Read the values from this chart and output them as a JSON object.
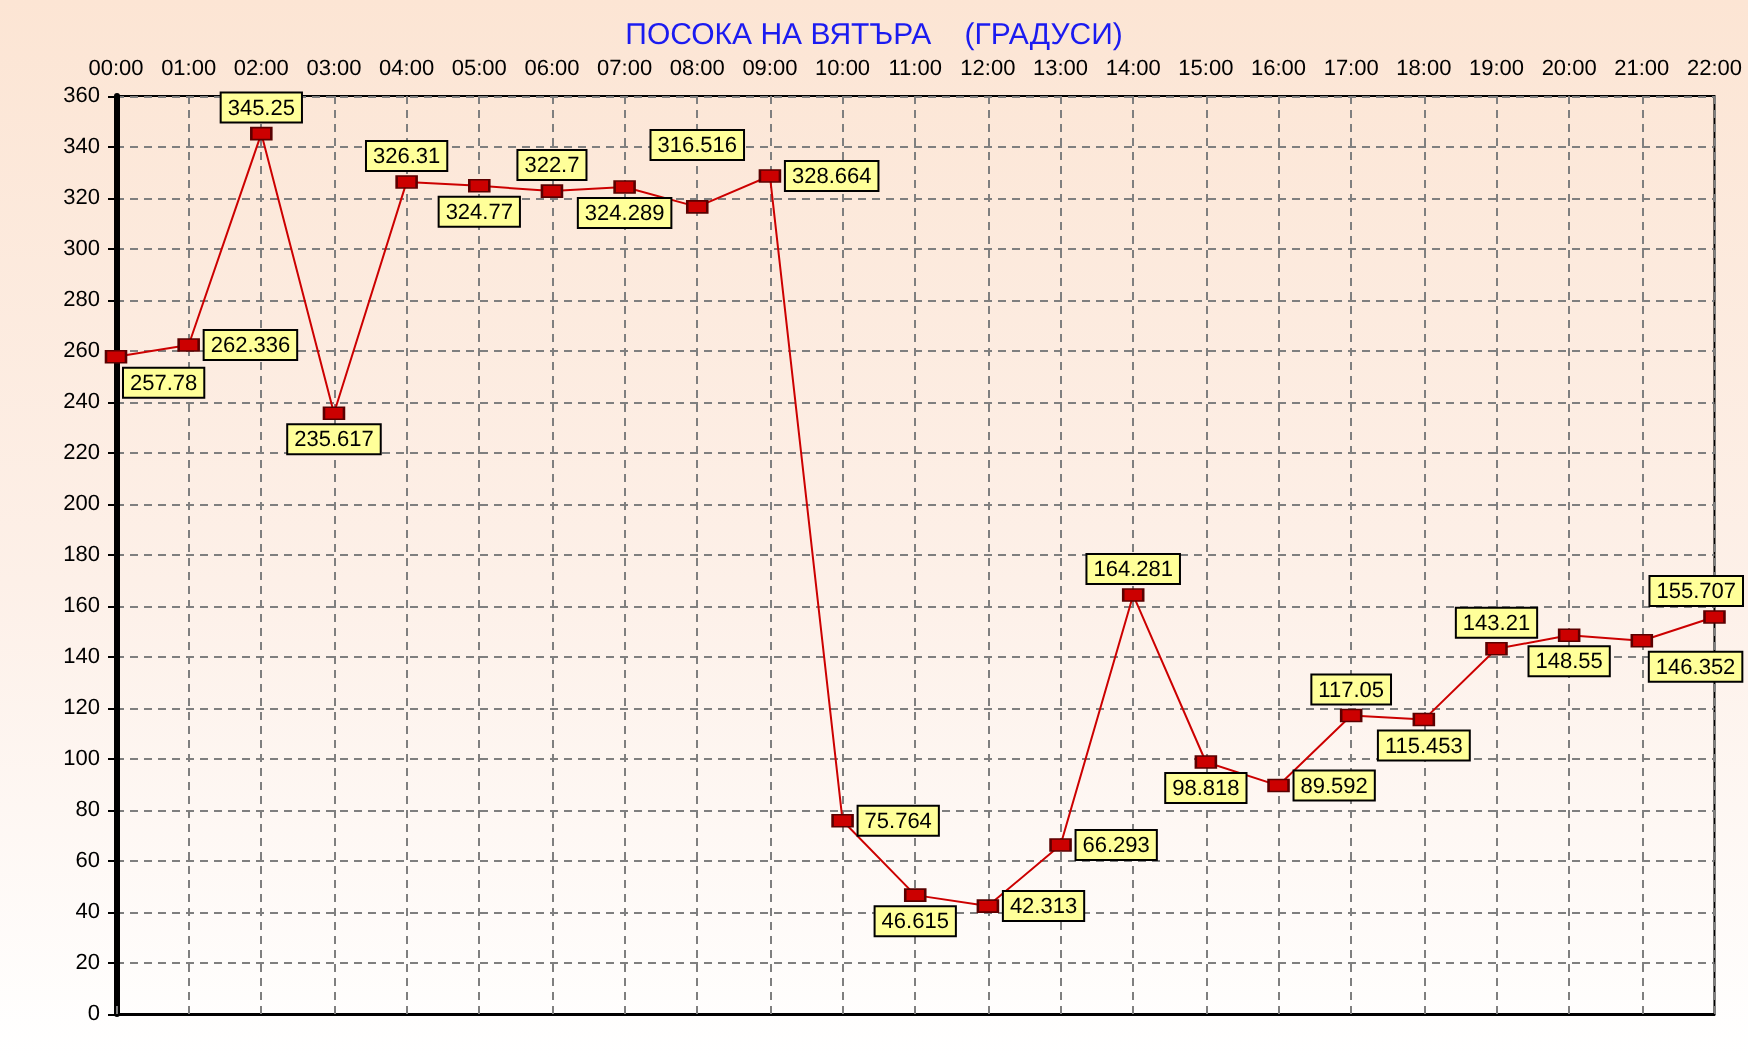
{
  "chart_data": {
    "type": "line",
    "title": "ПОСОКА НА ВЯТЪРА    (ГРАДУСИ)",
    "categories": [
      "00:00",
      "01:00",
      "02:00",
      "03:00",
      "04:00",
      "05:00",
      "06:00",
      "07:00",
      "08:00",
      "09:00",
      "10:00",
      "11:00",
      "12:00",
      "13:00",
      "14:00",
      "15:00",
      "16:00",
      "17:00",
      "18:00",
      "19:00",
      "20:00",
      "21:00",
      "22:00"
    ],
    "series": [
      {
        "color": "#cc0000",
        "values": [
          257.78,
          262.336,
          345.25,
          235.617,
          326.31,
          324.77,
          322.7,
          324.289,
          316.516,
          328.664,
          75.764,
          46.615,
          42.313,
          66.293,
          164.281,
          98.818,
          89.592,
          117.05,
          115.453,
          143.21,
          148.55,
          146.352,
          155.707
        ]
      }
    ],
    "ylim": [
      0,
      360
    ],
    "yticks": [
      0,
      20,
      40,
      60,
      80,
      100,
      120,
      140,
      160,
      180,
      200,
      220,
      240,
      260,
      280,
      300,
      320,
      340,
      360
    ],
    "grid": true,
    "marker": "square",
    "line_style": "solid",
    "data_labels": true
  }
}
